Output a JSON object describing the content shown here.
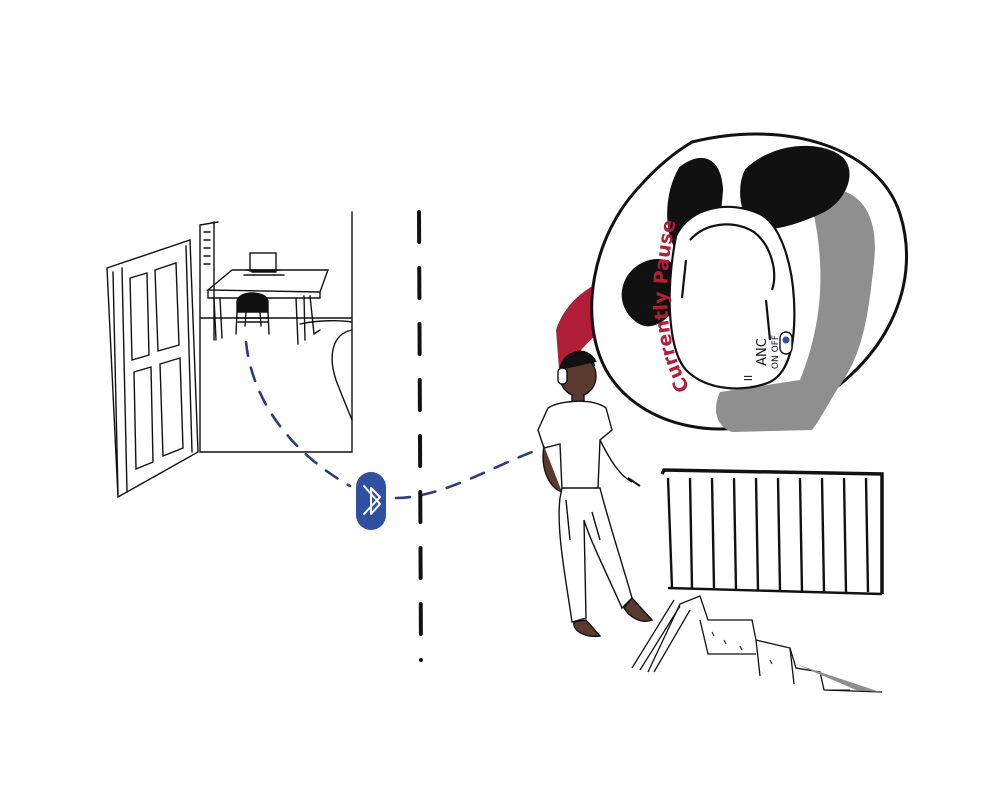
{
  "illustration": {
    "description_title": "Headphones paused when wearer walks away from Bluetooth range",
    "status_label": "Currently Paused",
    "headphone_controls": {
      "anc_label": "ANC",
      "anc_options": "ON OFF",
      "pause_symbol": "II"
    },
    "icons": {
      "bluetooth": "bluetooth-icon"
    },
    "colors": {
      "ink": "#111111",
      "bluetooth_blue": "#2f4fa0",
      "signal_dash": "#2a3f7a",
      "speech_red": "#b01e38",
      "shadow_gray": "#8f8f8f",
      "skin": "#5a3a2e"
    }
  }
}
